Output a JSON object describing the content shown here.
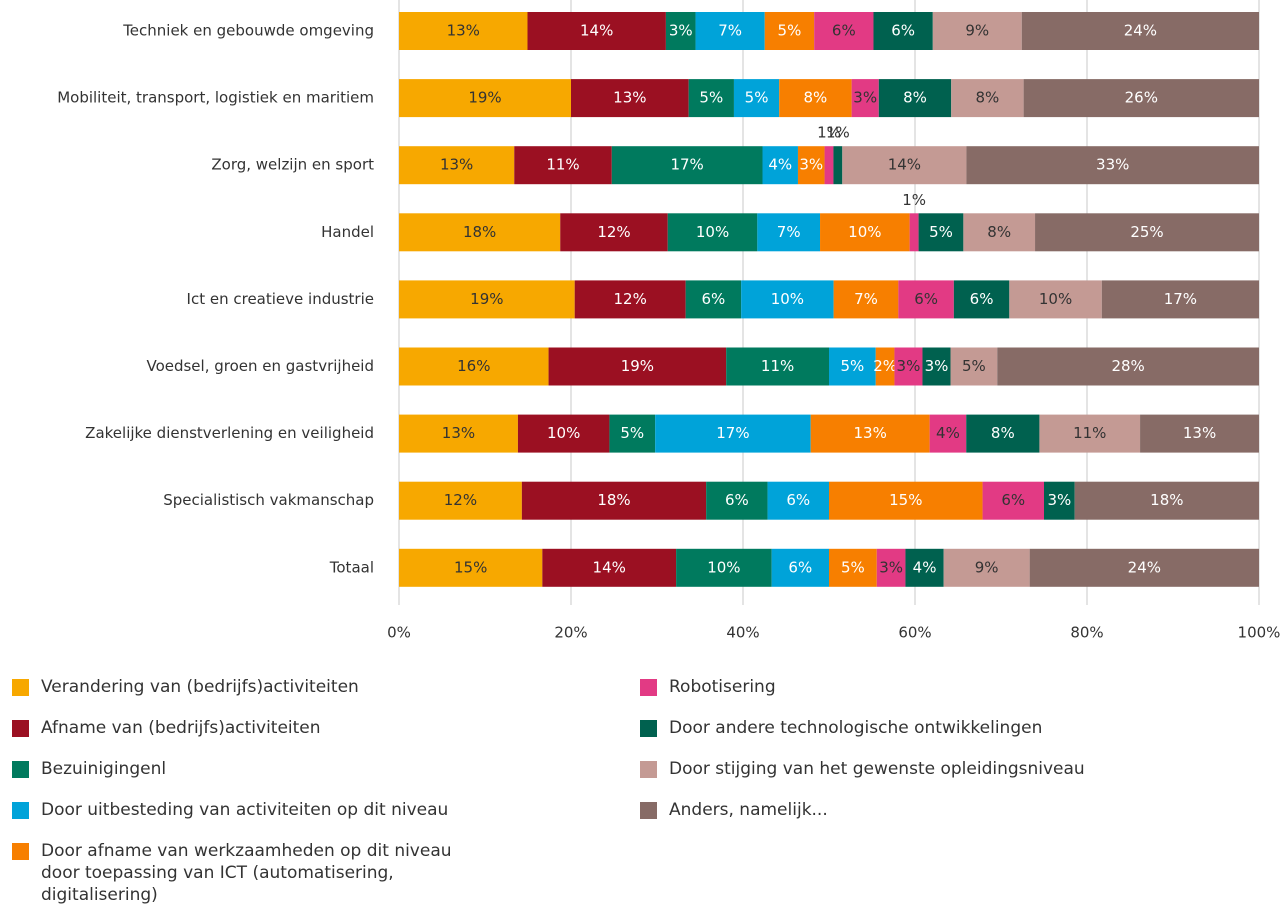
{
  "chart_data": {
    "type": "stacked-percent-bar-horizontal",
    "categories": [
      "Techniek en gebouwde omgeving",
      "Mobiliteit, transport, logistiek en maritiem",
      "Zorg, welzijn en sport",
      "Handel",
      "Ict en creatieve industrie",
      "Voedsel, groen en gastvrijheid",
      "Zakelijke dienstverlening en veiligheid",
      "Specialistisch vakmanschap",
      "Totaal"
    ],
    "xlim": [
      0,
      100
    ],
    "xticks": [
      {
        "value": 0,
        "label": "0%"
      },
      {
        "value": 20,
        "label": "20%"
      },
      {
        "value": 40,
        "label": "40%"
      },
      {
        "value": 60,
        "label": "60%"
      },
      {
        "value": 80,
        "label": "80%"
      },
      {
        "value": 100,
        "label": "100%"
      }
    ],
    "grid": true,
    "legend": "bottom",
    "series": [
      {
        "name": "Verandering van (bedrijfs)activiteiten",
        "color": "#f7a800",
        "label_color": "#333333",
        "values": [
          13,
          19,
          13,
          18,
          19,
          16,
          13,
          12,
          15
        ],
        "value_labels": [
          "13%",
          "19%",
          "13%",
          "18%",
          "19%",
          "16%",
          "13%",
          "12%",
          "15%"
        ]
      },
      {
        "name": "Afname van (bedrijfs)activiteiten",
        "color": "#9b1022",
        "label_color": "#ffffff",
        "values": [
          14,
          13,
          11,
          12,
          12,
          19,
          10,
          18,
          14
        ],
        "value_labels": [
          "14%",
          "13%",
          "11%",
          "12%",
          "12%",
          "19%",
          "10%",
          "18%",
          "14%"
        ]
      },
      {
        "name": "Bezuinigingenl",
        "color": "#007a5e",
        "label_color": "#ffffff",
        "values": [
          3,
          5,
          17,
          10,
          6,
          11,
          5,
          6,
          10
        ],
        "value_labels": [
          "3%",
          "5%",
          "17%",
          "10%",
          "6%",
          "11%",
          "5%",
          "6%",
          "10%"
        ]
      },
      {
        "name": "Door uitbesteding van activiteiten op dit niveau",
        "color": "#00a3d9",
        "label_color": "#ffffff",
        "values": [
          7,
          5,
          4,
          7,
          10,
          5,
          17,
          6,
          6
        ],
        "value_labels": [
          "7%",
          "5%",
          "4%",
          "7%",
          "10%",
          "5%",
          "17%",
          "6%",
          "6%"
        ]
      },
      {
        "name": "Door afname van werkzaamheden op dit niveau door toepassing van ICT (automatisering, digitalisering)",
        "color": "#f77f00",
        "label_color": "#ffffff",
        "values": [
          5,
          8,
          3,
          10,
          7,
          2,
          13,
          15,
          5
        ],
        "value_labels": [
          "5%",
          "8%",
          "3%",
          "10%",
          "7%",
          "2%",
          "13%",
          "15%",
          "5%"
        ]
      },
      {
        "name": "Robotisering",
        "color": "#e23a84",
        "label_color": "#333333",
        "values": [
          6,
          3,
          1,
          1,
          6,
          3,
          4,
          6,
          3
        ],
        "value_labels": [
          "6%",
          "3%",
          "1%",
          "1%",
          "6%",
          "3%",
          "4%",
          "6%",
          "3%"
        ]
      },
      {
        "name": "Door andere technologische ontwikkelingen",
        "color": "#00614f",
        "label_color": "#ffffff",
        "values": [
          6,
          8,
          1,
          5,
          6,
          3,
          8,
          3,
          4
        ],
        "value_labels": [
          "6%",
          "8%",
          "1%",
          "5%",
          "6%",
          "3%",
          "8%",
          "3%",
          "4%"
        ]
      },
      {
        "name": "Door stijging van het gewenste opleidingsniveau",
        "color": "#c49a94",
        "label_color": "#333333",
        "values": [
          9,
          8,
          14,
          8,
          10,
          5,
          11,
          null,
          9
        ],
        "value_labels": [
          "9%",
          "8%",
          "14%",
          "8%",
          "10%",
          "5%",
          "11%",
          null,
          "9%"
        ]
      },
      {
        "name": "Anders, namelijk...",
        "color": "#876b66",
        "label_color": "#ffffff",
        "values": [
          24,
          26,
          33,
          25,
          17,
          28,
          13,
          18,
          24
        ],
        "value_labels": [
          "24%",
          "26%",
          "33%",
          "25%",
          "17%",
          "28%",
          "13%",
          "18%",
          "24%"
        ]
      }
    ]
  }
}
